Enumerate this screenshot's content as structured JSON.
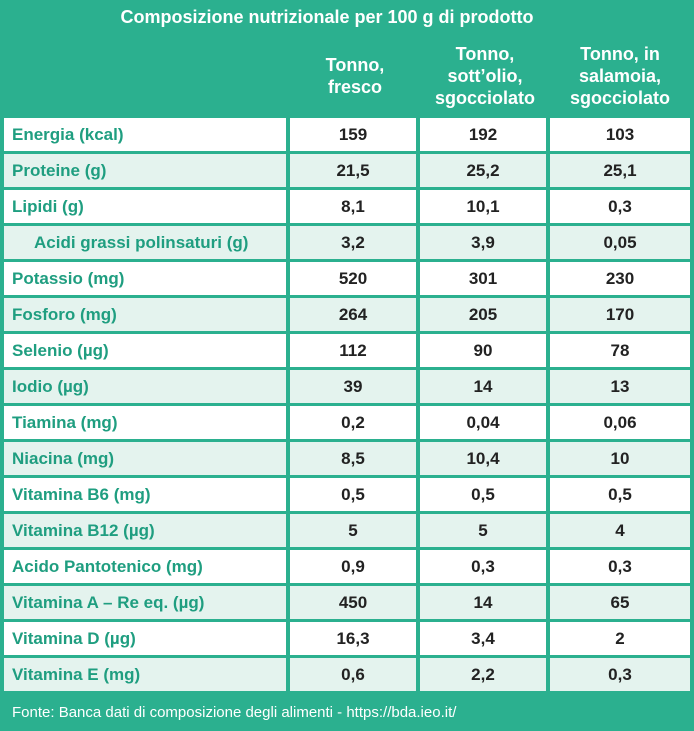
{
  "title": "Composizione nutrizionale per 100 g di prodotto",
  "columns": [
    "Tonno,\nfresco",
    "Tonno,\nsott’olio,\nsgocciolato",
    "Tonno, in\nsalamoia,\nsgocciolato"
  ],
  "rows": [
    {
      "label": "Energia (kcal)",
      "values": [
        "159",
        "192",
        "103"
      ]
    },
    {
      "label": "Proteine (g)",
      "values": [
        "21,5",
        "25,2",
        "25,1"
      ]
    },
    {
      "label": "Lipidi (g)",
      "values": [
        "8,1",
        "10,1",
        "0,3"
      ]
    },
    {
      "label": "Acidi grassi polinsaturi (g)",
      "values": [
        "3,2",
        "3,9",
        "0,05"
      ],
      "indent": true
    },
    {
      "label": "Potassio (mg)",
      "values": [
        "520",
        "301",
        "230"
      ]
    },
    {
      "label": "Fosforo (mg)",
      "values": [
        "264",
        "205",
        "170"
      ]
    },
    {
      "label": "Selenio (µg)",
      "values": [
        "112",
        "90",
        "78"
      ]
    },
    {
      "label": "Iodio (µg)",
      "values": [
        "39",
        "14",
        "13"
      ]
    },
    {
      "label": "Tiamina (mg)",
      "values": [
        "0,2",
        "0,04",
        "0,06"
      ]
    },
    {
      "label": "Niacina (mg)",
      "values": [
        "8,5",
        "10,4",
        "10"
      ]
    },
    {
      "label": "Vitamina B6 (mg)",
      "values": [
        "0,5",
        "0,5",
        "0,5"
      ]
    },
    {
      "label": "Vitamina B12 (µg)",
      "values": [
        "5",
        "5",
        "4"
      ]
    },
    {
      "label": "Acido Pantotenico (mg)",
      "values": [
        "0,9",
        "0,3",
        "0,3"
      ]
    },
    {
      "label": "Vitamina A – Re eq. (µg)",
      "values": [
        "450",
        "14",
        "65"
      ]
    },
    {
      "label": "Vitamina D (µg)",
      "values": [
        "16,3",
        "3,4",
        "2"
      ]
    },
    {
      "label": "Vitamina E (mg)",
      "values": [
        "0,6",
        "2,2",
        "0,3"
      ]
    }
  ],
  "footer": "Fonte: Banca dati di composizione degli alimenti - https://bda.ieo.it/",
  "colors": {
    "header_green": "#2bb08f",
    "label_green": "#1f9e80",
    "row_odd": "#ffffff",
    "row_even": "#e4f3ee"
  }
}
